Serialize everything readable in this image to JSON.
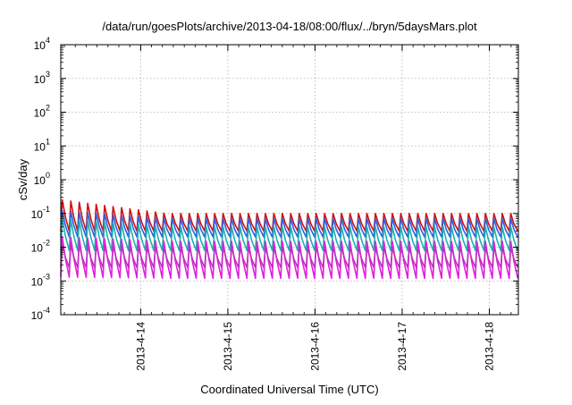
{
  "chart_data": {
    "type": "line",
    "title": "/data/run/goesPlots/archive/2013-04-18/08:00/flux/../bryn/5daysMars.plot",
    "xlabel": "Coordinated Universal Time (UTC)",
    "ylabel": "cSv/day",
    "yscale": "log",
    "ylim": [
      0.0001,
      10000
    ],
    "y_ticks": [
      {
        "base": "10",
        "exp": "-4"
      },
      {
        "base": "10",
        "exp": "-3"
      },
      {
        "base": "10",
        "exp": "-2"
      },
      {
        "base": "10",
        "exp": "-1"
      },
      {
        "base": "10",
        "exp": "0"
      },
      {
        "base": "10",
        "exp": "1"
      },
      {
        "base": "10",
        "exp": "2"
      },
      {
        "base": "10",
        "exp": "3"
      },
      {
        "base": "10",
        "exp": "4"
      }
    ],
    "xlim": [
      "2013-04-13T02:00",
      "2013-04-18T08:00"
    ],
    "x_ticks": [
      "2013-4-14",
      "2013-4-15",
      "2013-4-16",
      "2013-4-17",
      "2013-4-18"
    ],
    "grid": true,
    "cycle_hours": 2.33,
    "series": [
      {
        "color": "#d01010",
        "peak_start": 0.25,
        "peak_end": 0.1,
        "trough_start": 0.03,
        "trough_end": 0.03
      },
      {
        "color": "#3060e0",
        "peak_start": 0.12,
        "peak_end": 0.07,
        "trough_start": 0.02,
        "trough_end": 0.02
      },
      {
        "color": "#20b0b0",
        "peak_start": 0.07,
        "peak_end": 0.04,
        "trough_start": 0.008,
        "trough_end": 0.008
      },
      {
        "color": "#e020e0",
        "peak_start": 0.02,
        "peak_end": 0.015,
        "trough_start": 0.0013,
        "trough_end": 0.0012
      },
      {
        "color": "#c030c0",
        "peak_start": 0.012,
        "peak_end": 0.01,
        "trough_start": 0.0025,
        "trough_end": 0.0025
      }
    ]
  }
}
